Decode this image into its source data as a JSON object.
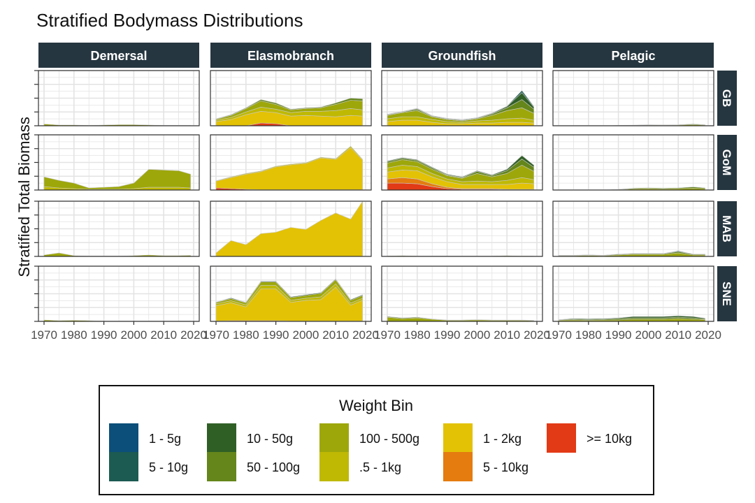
{
  "chart_data": {
    "type": "area",
    "title": "Stratified Bodymass Distributions",
    "ylabel": "Stratified Total Biomass",
    "xlabel": "",
    "x_range": [
      1970,
      2020
    ],
    "x_ticks": [
      "1970",
      "1980",
      "1990",
      "2000",
      "2010",
      "2020"
    ],
    "y_range": [
      0,
      8
    ],
    "columns": [
      "Demersal",
      "Elasmobranch",
      "Groundfish",
      "Pelagic"
    ],
    "rows": [
      "GB",
      "GoM",
      "MAB",
      "SNE"
    ],
    "years": [
      1970,
      1975,
      1980,
      1985,
      1990,
      1995,
      2000,
      2005,
      2010,
      2015,
      2019
    ],
    "legend": {
      "title": "Weight Bin",
      "position": "bottom",
      "items": [
        {
          "label": "1 - 5g",
          "color": "#0B4F7A"
        },
        {
          "label": "5 - 10g",
          "color": "#1C5B52"
        },
        {
          "label": "10 - 50g",
          "color": "#305F26"
        },
        {
          "label": "50 - 100g",
          "color": "#64861A"
        },
        {
          "label": "100 - 500g",
          "color": "#9DA70A"
        },
        {
          "label": ".5 - 1kg",
          "color": "#BFB904"
        },
        {
          "label": "1 - 2kg",
          "color": "#E3C205"
        },
        {
          "label": "5 - 10kg",
          "color": "#E47C0F"
        },
        {
          "label": ">= 10kg",
          "color": "#E23A16"
        }
      ]
    },
    "panels": [
      {
        "col": "Demersal",
        "row": "GB",
        "series": {
          "100 - 500g": [
            0.25,
            0.1,
            0.1,
            0.05,
            0.1,
            0.15,
            0.15,
            0.1,
            0.05,
            0.05,
            0.05
          ]
        }
      },
      {
        "col": "Elasmobranch",
        "row": "GB",
        "series": {
          ">= 10kg": [
            0,
            0,
            0,
            0.4,
            0.3,
            0,
            0,
            0,
            0,
            0,
            0
          ],
          "1 - 2kg": [
            0.6,
            0.9,
            1.6,
            1.7,
            1.6,
            1.4,
            1.5,
            1.4,
            1.3,
            1.5,
            1.4
          ],
          ".5 - 1kg": [
            0.2,
            0.3,
            0.4,
            0.6,
            0.5,
            0.5,
            0.6,
            0.7,
            0.9,
            1.0,
            0.9
          ],
          "100 - 500g": [
            0.15,
            0.3,
            0.5,
            0.9,
            0.7,
            0.4,
            0.4,
            0.5,
            0.9,
            1.2,
            1.3
          ],
          "50 - 100g": [
            0.05,
            0.1,
            0.1,
            0.2,
            0.2,
            0.1,
            0.1,
            0.1,
            0.2,
            0.3,
            0.3
          ]
        }
      },
      {
        "col": "Groundfish",
        "row": "GB",
        "series": {
          "1 - 2kg": [
            0.6,
            0.8,
            0.8,
            0.5,
            0.3,
            0.3,
            0.4,
            0.4,
            0.5,
            0.5,
            0.4
          ],
          ".5 - 1kg": [
            0.4,
            0.5,
            0.5,
            0.4,
            0.3,
            0.2,
            0.3,
            0.4,
            0.5,
            0.6,
            0.4
          ],
          "100 - 500g": [
            0.5,
            0.6,
            0.9,
            0.4,
            0.3,
            0.2,
            0.3,
            0.7,
            1.2,
            1.5,
            1.0
          ],
          "50 - 100g": [
            0.1,
            0.1,
            0.2,
            0.1,
            0.1,
            0.1,
            0.1,
            0.2,
            0.4,
            1.2,
            0.6
          ],
          "10 - 50g": [
            0.05,
            0.05,
            0.1,
            0.05,
            0.05,
            0.05,
            0.05,
            0.1,
            0.2,
            1.0,
            0.3
          ],
          "5 - 10g": [
            0.02,
            0.02,
            0.03,
            0.02,
            0.02,
            0.02,
            0.02,
            0.03,
            0.05,
            0.3,
            0.1
          ]
        }
      },
      {
        "col": "Pelagic",
        "row": "GB",
        "series": {
          "100 - 500g": [
            0,
            0,
            0,
            0,
            0.03,
            0.05,
            0.1,
            0.08,
            0.1,
            0.15,
            0.1
          ],
          "50 - 100g": [
            0,
            0,
            0,
            0,
            0.02,
            0.03,
            0.05,
            0.03,
            0.05,
            0.1,
            0.05
          ]
        }
      },
      {
        "col": "Demersal",
        "row": "GoM",
        "series": {
          ".5 - 1kg": [
            0.5,
            0.3,
            0.2,
            0.1,
            0.1,
            0.1,
            0.2,
            0.4,
            0.4,
            0.4,
            0.3
          ],
          "100 - 500g": [
            1.4,
            1.1,
            0.8,
            0.2,
            0.3,
            0.4,
            0.8,
            2.6,
            2.5,
            2.4,
            2.0
          ]
        }
      },
      {
        "col": "Elasmobranch",
        "row": "GoM",
        "series": {
          ">= 10kg": [
            0.3,
            0.2,
            0.1,
            0.05,
            0.05,
            0.05,
            0.05,
            0.05,
            0.05,
            0.05,
            0.05
          ],
          "1 - 2kg": [
            1.0,
            1.6,
            2.2,
            2.6,
            3.3,
            3.6,
            3.8,
            4.6,
            4.4,
            6.1,
            4.3
          ],
          ".5 - 1kg": [
            0.05,
            0.1,
            0.1,
            0.1,
            0.1,
            0.1,
            0.1,
            0.1,
            0.1,
            0.2,
            0.1
          ]
        }
      },
      {
        "col": "Groundfish",
        "row": "GoM",
        "series": {
          ">= 10kg": [
            1.0,
            1.0,
            0.9,
            0.5,
            0.2,
            0.1,
            0.1,
            0.1,
            0.05,
            0.05,
            0.05
          ],
          "5 - 10kg": [
            0.6,
            0.8,
            0.7,
            0.4,
            0.2,
            0.1,
            0.1,
            0.1,
            0.05,
            0.05,
            0.05
          ],
          "1 - 2kg": [
            1.0,
            1.1,
            1.2,
            1.0,
            0.8,
            0.6,
            0.6,
            0.6,
            0.7,
            0.9,
            0.8
          ],
          ".5 - 1kg": [
            0.6,
            0.7,
            0.6,
            0.5,
            0.4,
            0.4,
            0.5,
            0.4,
            0.6,
            0.8,
            0.6
          ],
          "100 - 500g": [
            0.7,
            0.8,
            0.7,
            0.6,
            0.5,
            0.5,
            1.1,
            0.7,
            1.0,
            1.8,
            1.2
          ],
          "50 - 100g": [
            0.2,
            0.2,
            0.2,
            0.2,
            0.1,
            0.1,
            0.3,
            0.2,
            0.4,
            0.9,
            0.6
          ],
          "10 - 50g": [
            0.1,
            0.1,
            0.1,
            0.1,
            0.1,
            0.1,
            0.1,
            0.1,
            0.2,
            0.5,
            0.3
          ]
        }
      },
      {
        "col": "Pelagic",
        "row": "GoM",
        "series": {
          "100 - 500g": [
            0,
            0,
            0,
            0,
            0.05,
            0.15,
            0.2,
            0.15,
            0.2,
            0.25,
            0.2
          ],
          "50 - 100g": [
            0,
            0,
            0,
            0,
            0.05,
            0.1,
            0.1,
            0.1,
            0.1,
            0.2,
            0.1
          ]
        }
      },
      {
        "col": "Demersal",
        "row": "MAB",
        "series": {
          "100 - 500g": [
            0.2,
            0.5,
            0.1,
            0.05,
            0.05,
            0.05,
            0.1,
            0.2,
            0.1,
            0.1,
            0.15
          ]
        }
      },
      {
        "col": "Elasmobranch",
        "row": "MAB",
        "series": {
          "1 - 2kg": [
            0.5,
            2.3,
            1.7,
            3.3,
            3.5,
            4.2,
            3.9,
            5.2,
            6.3,
            5.4,
            8.0
          ]
        }
      },
      {
        "col": "Groundfish",
        "row": "MAB",
        "series": {
          "100 - 500g": [
            0.05,
            0.1,
            0.05,
            0.05,
            0.05,
            0.05,
            0.05,
            0.05,
            0.1,
            0.05,
            0.05
          ]
        }
      },
      {
        "col": "Pelagic",
        "row": "MAB",
        "series": {
          "100 - 500g": [
            0.1,
            0.1,
            0.15,
            0.1,
            0.2,
            0.3,
            0.3,
            0.3,
            0.5,
            0.2,
            0.2
          ],
          "50 - 100g": [
            0.05,
            0.05,
            0.05,
            0.05,
            0.1,
            0.1,
            0.1,
            0.1,
            0.2,
            0.1,
            0.1
          ],
          "5 - 10g": [
            0.02,
            0.02,
            0.02,
            0.02,
            0.02,
            0.02,
            0.02,
            0.02,
            0.1,
            0.02,
            0.02
          ]
        }
      },
      {
        "col": "Demersal",
        "row": "SNE",
        "series": {
          "100 - 500g": [
            0.2,
            0.1,
            0.15,
            0.1,
            0.05,
            0.05,
            0.05,
            0.05,
            0.05,
            0.05,
            0.05
          ]
        }
      },
      {
        "col": "Elasmobranch",
        "row": "SNE",
        "series": {
          ">= 10kg": [
            0.05,
            0.1,
            0.1,
            0.1,
            0.1,
            0.05,
            0.05,
            0.05,
            0.05,
            0.05,
            0.05
          ],
          "1 - 2kg": [
            2.2,
            2.6,
            2.0,
            4.6,
            4.6,
            2.7,
            3.0,
            3.1,
            4.9,
            2.3,
            3.0
          ],
          ".5 - 1kg": [
            0.3,
            0.3,
            0.3,
            0.5,
            0.5,
            0.3,
            0.3,
            0.4,
            0.5,
            0.3,
            0.3
          ],
          "100 - 500g": [
            0.2,
            0.3,
            0.3,
            0.5,
            0.5,
            0.4,
            0.4,
            0.5,
            0.6,
            0.4,
            0.4
          ],
          "10 - 50g": [
            0.05,
            0.1,
            0.05,
            0.1,
            0.1,
            0.1,
            0.1,
            0.1,
            0.1,
            0.1,
            0.1
          ]
        }
      },
      {
        "col": "Groundfish",
        "row": "SNE",
        "series": {
          "100 - 500g": [
            0.6,
            0.4,
            0.5,
            0.3,
            0.15,
            0.15,
            0.2,
            0.15,
            0.15,
            0.15,
            0.1
          ],
          "50 - 100g": [
            0.1,
            0.1,
            0.1,
            0.05,
            0.05,
            0.05,
            0.05,
            0.05,
            0.05,
            0.05,
            0.05
          ]
        }
      },
      {
        "col": "Pelagic",
        "row": "SNE",
        "series": {
          "100 - 500g": [
            0.15,
            0.2,
            0.15,
            0.2,
            0.2,
            0.3,
            0.3,
            0.3,
            0.4,
            0.3,
            0.25
          ],
          "50 - 100g": [
            0.05,
            0.1,
            0.1,
            0.1,
            0.2,
            0.2,
            0.2,
            0.2,
            0.2,
            0.2,
            0.1
          ],
          "10 - 50g": [
            0.05,
            0.1,
            0.1,
            0.1,
            0.1,
            0.2,
            0.2,
            0.2,
            0.2,
            0.2,
            0.1
          ]
        }
      }
    ]
  }
}
